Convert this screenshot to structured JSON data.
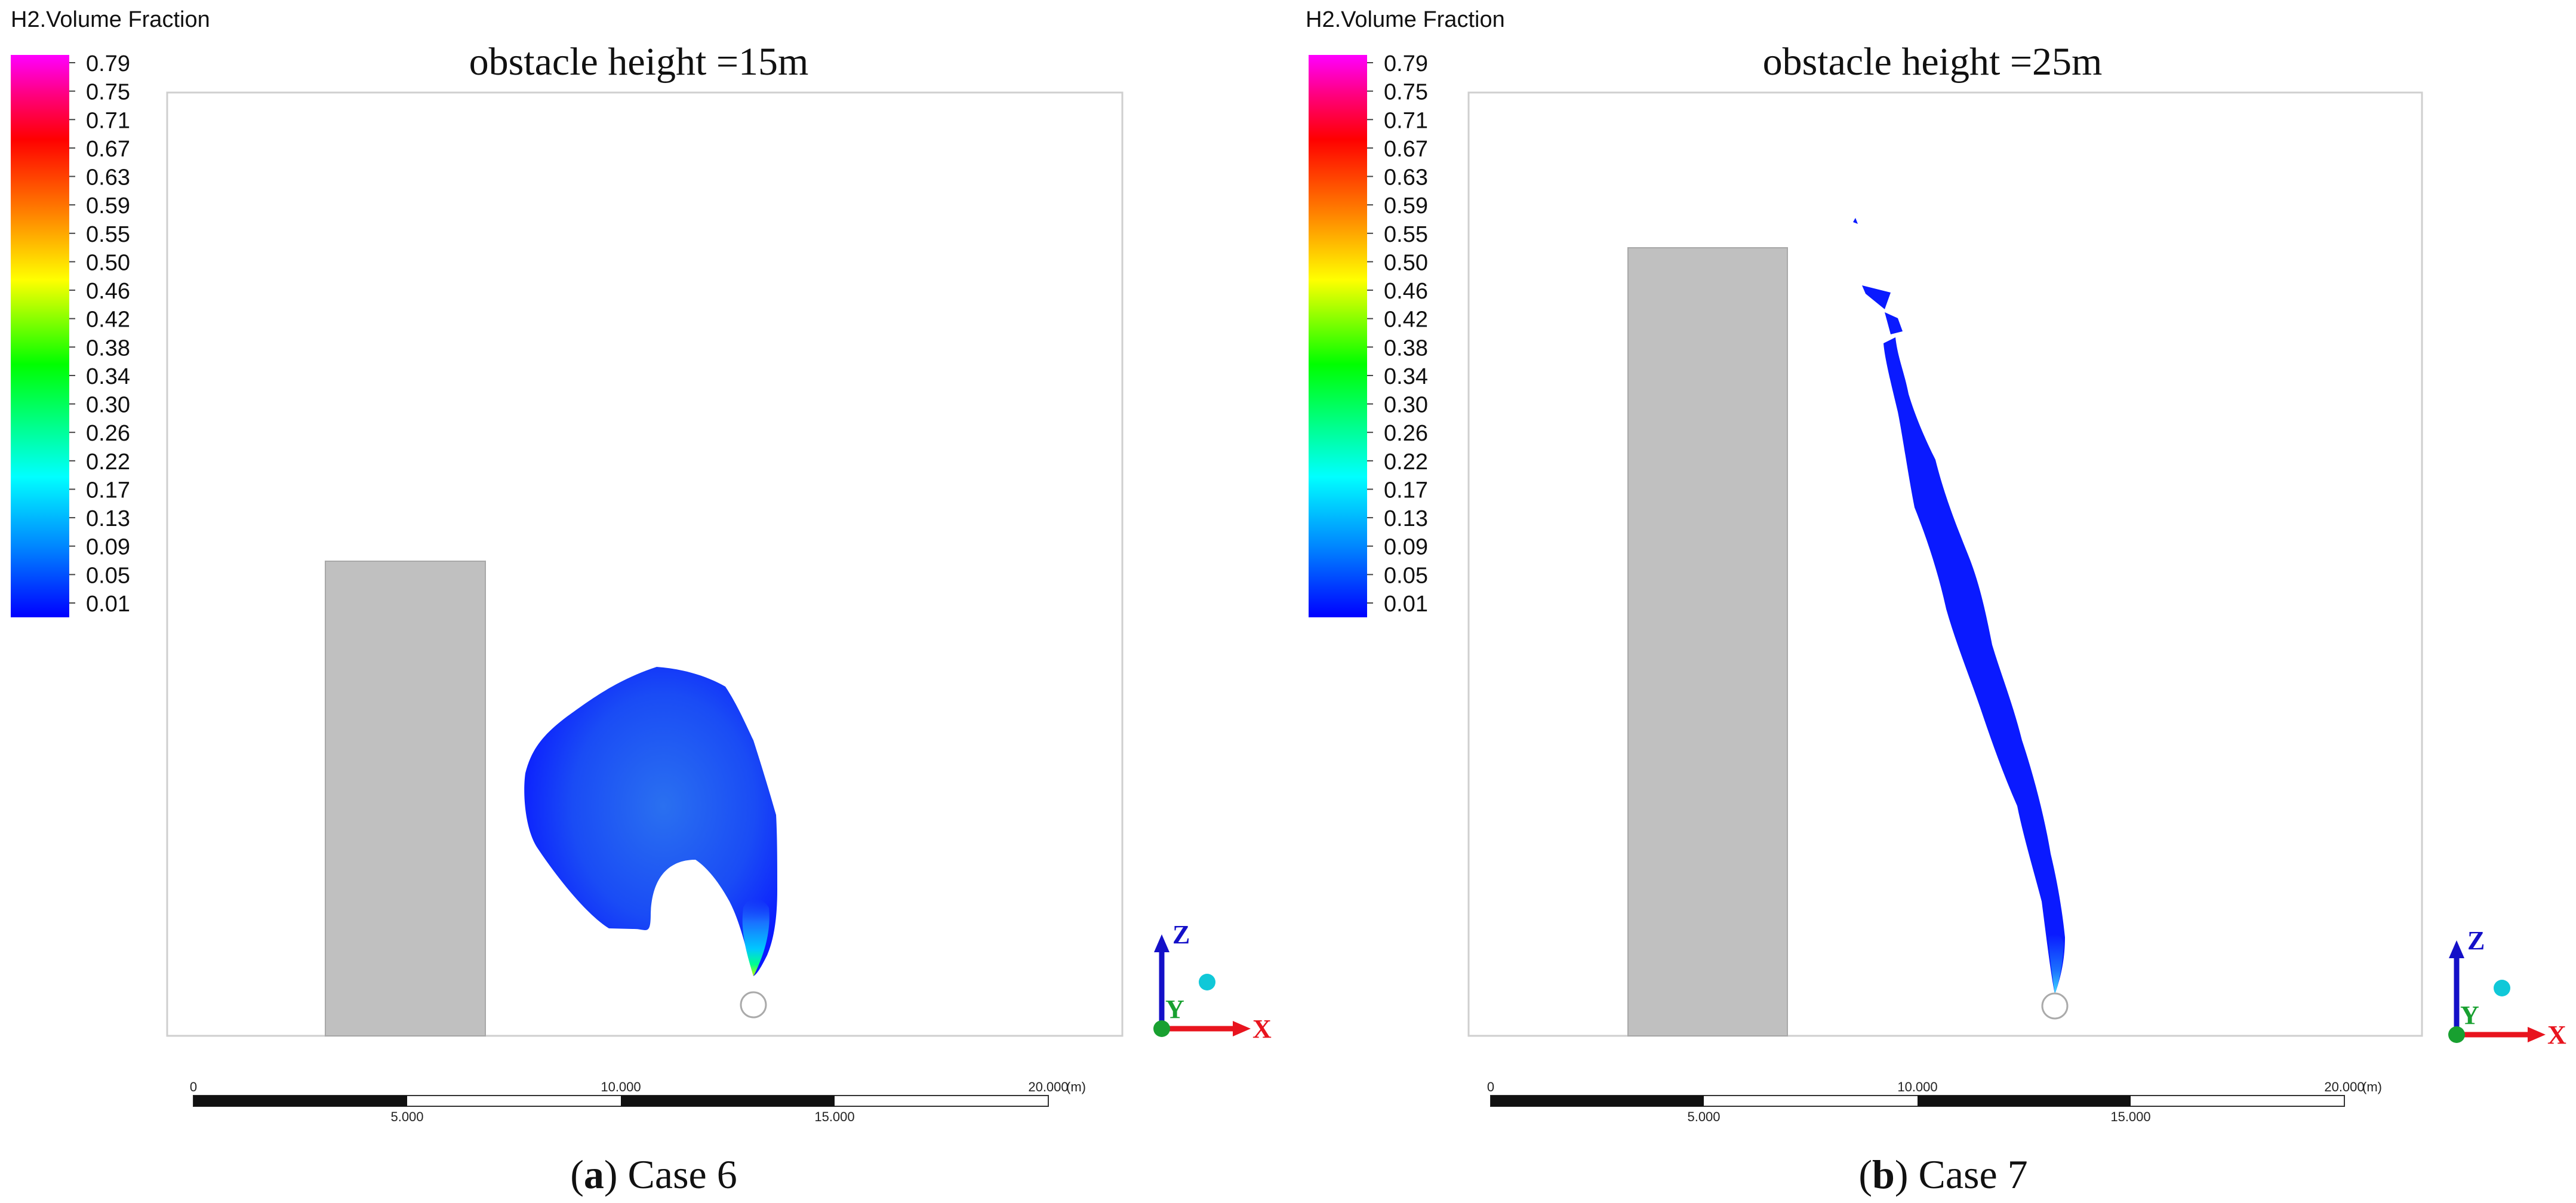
{
  "colorbar": {
    "title": "H2.Volume Fraction",
    "ticks": [
      "0.79",
      "0.75",
      "0.71",
      "0.67",
      "0.63",
      "0.59",
      "0.55",
      "0.50",
      "0.46",
      "0.42",
      "0.38",
      "0.34",
      "0.30",
      "0.26",
      "0.22",
      "0.17",
      "0.13",
      "0.09",
      "0.05",
      "0.01"
    ],
    "colors": [
      "#ff00ff",
      "#ff0080",
      "#ff0000",
      "#ff8000",
      "#ffff00",
      "#00ff00",
      "#00ffff",
      "#0080ff",
      "#0000ff"
    ]
  },
  "panels": [
    {
      "title": "obstacle height =15m",
      "caption_letter": "a",
      "caption_text": ") Case 6",
      "caption_open": "("
    },
    {
      "title": "obstacle height =25m",
      "caption_letter": "b",
      "caption_text": ") Case 7",
      "caption_open": "("
    }
  ],
  "scale": {
    "top_labels": [
      "0",
      "10.000",
      "20.000"
    ],
    "bottom_labels": [
      "5.000",
      "15.000"
    ],
    "unit": "(m)"
  },
  "axes": {
    "x": "X",
    "y": "Y",
    "z": "Z"
  },
  "colors": {
    "obstacle": "#c0c0c0",
    "plume": "#0a1aff",
    "axis_x": "#e8141e",
    "axis_y": "#18a030",
    "axis_z": "#1410c8",
    "frame": "#cfcfcf"
  }
}
